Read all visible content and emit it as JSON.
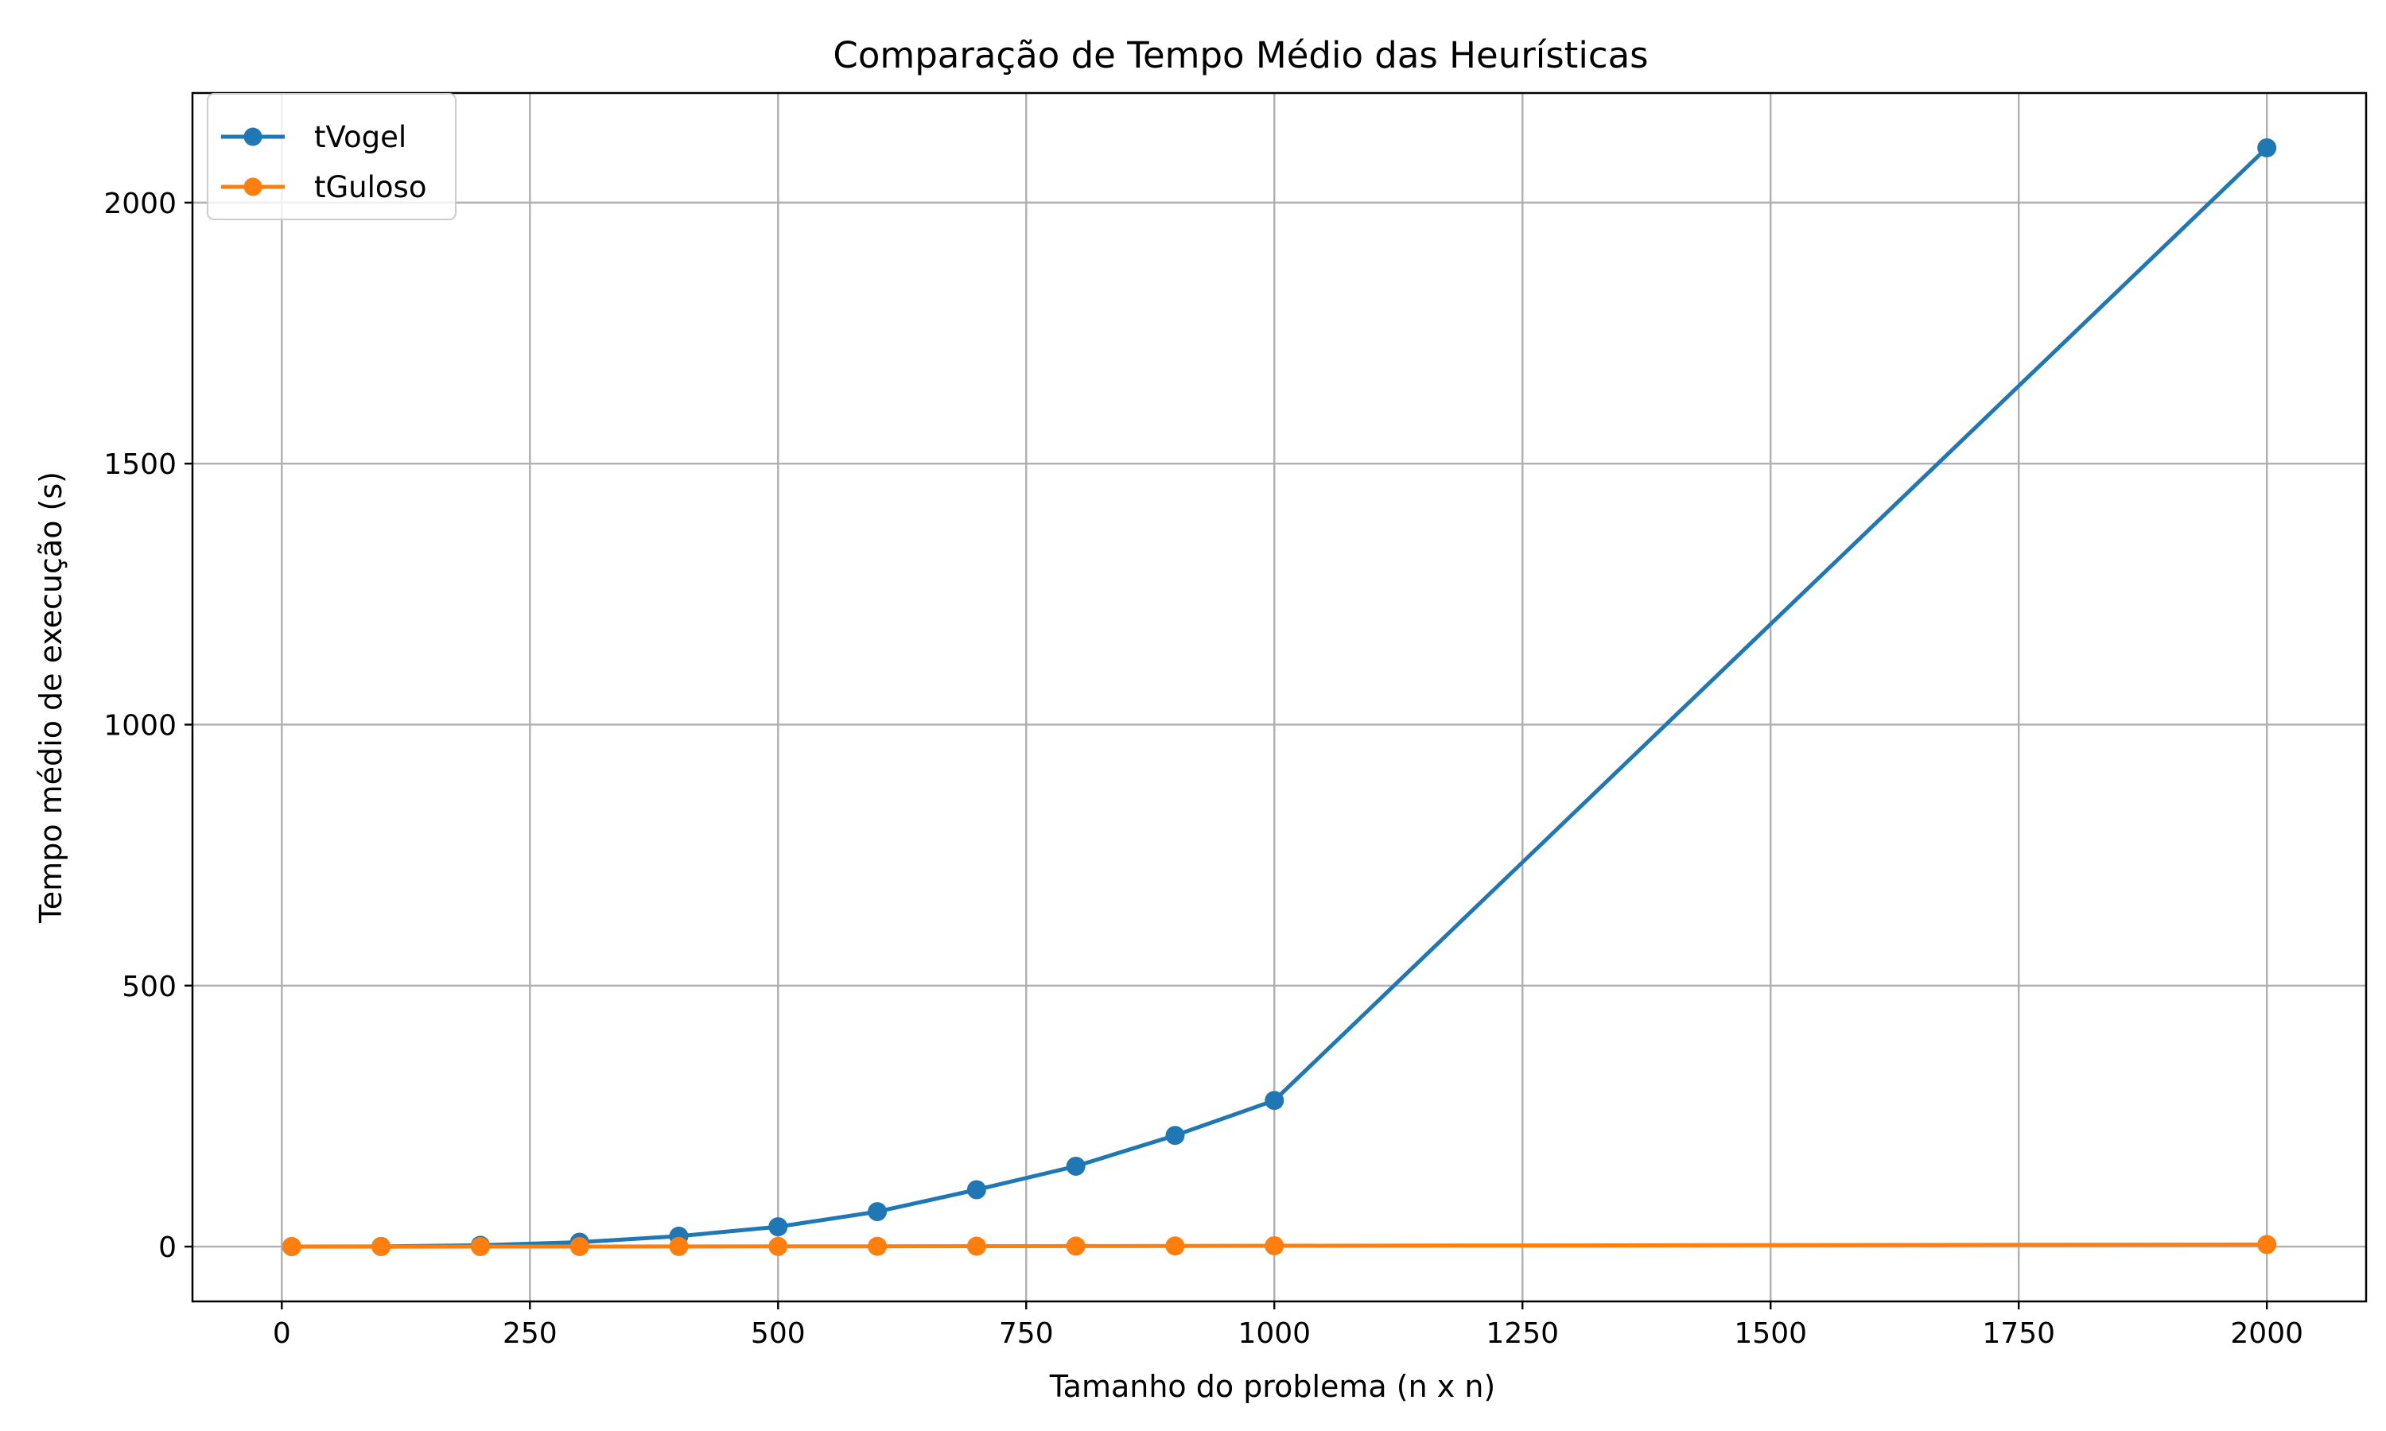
{
  "chart_data": {
    "type": "line",
    "title": "Comparação de Tempo Médio das Heurísticas",
    "xlabel": "Tamanho do problema (n x n)",
    "ylabel": "Tempo médio de execução (s)",
    "xlim": [
      -90,
      2100
    ],
    "ylim": [
      -105,
      2210
    ],
    "xticks": [
      0,
      250,
      500,
      750,
      1000,
      1250,
      1500,
      1750,
      2000
    ],
    "yticks": [
      0,
      500,
      1000,
      1500,
      2000
    ],
    "grid": true,
    "legend_position": "top-left",
    "x": [
      10,
      100,
      200,
      300,
      400,
      500,
      600,
      700,
      800,
      900,
      1000,
      2000
    ],
    "series": [
      {
        "name": "tVogel",
        "color": "#1f77b4",
        "values": [
          0.02,
          0.3,
          2.5,
          8.5,
          20,
          38,
          67,
          109,
          154,
          213,
          280,
          2105
        ]
      },
      {
        "name": "tGuloso",
        "color": "#ff7f0e",
        "values": [
          0.001,
          0.01,
          0.05,
          0.15,
          0.3,
          0.45,
          0.6,
          0.8,
          1.0,
          1.3,
          1.6,
          4.0
        ]
      }
    ]
  }
}
